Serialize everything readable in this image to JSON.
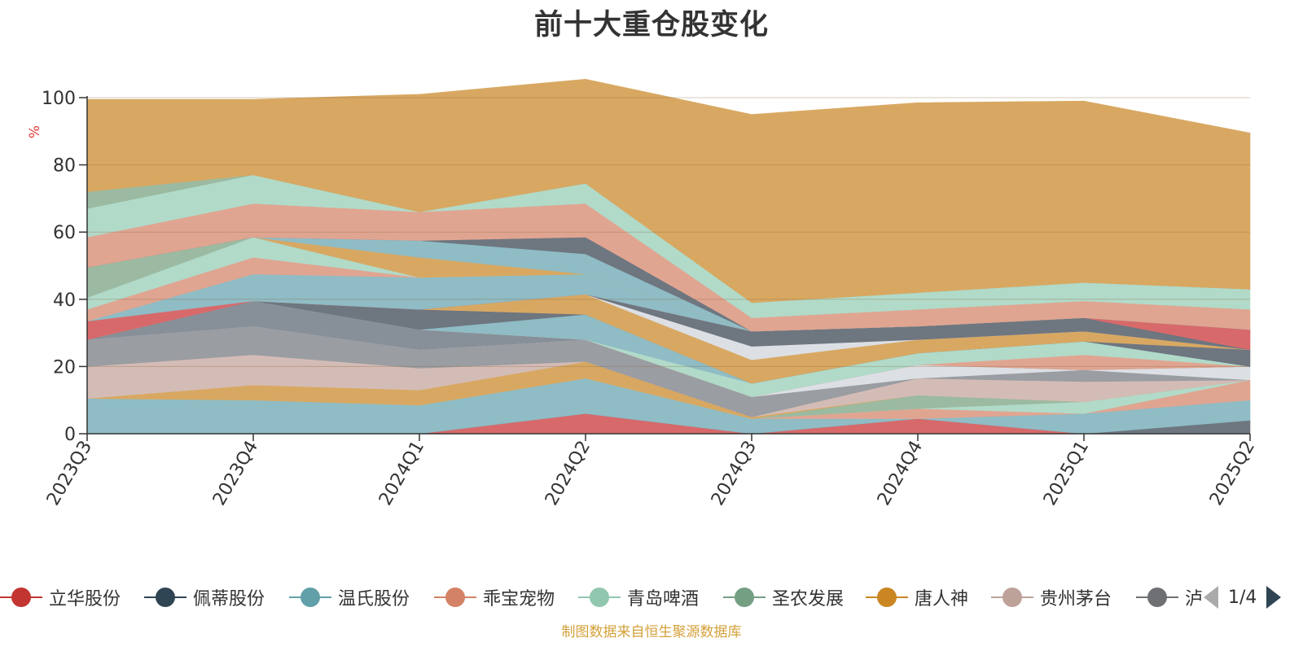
{
  "chart_data": {
    "type": "area",
    "stacked": true,
    "title": "前十大重仓股变化",
    "ylabel": "%",
    "ylim": [
      0,
      100
    ],
    "yticks": [
      0,
      20,
      40,
      60,
      80,
      100
    ],
    "grid": true,
    "categories": [
      "2023Q3",
      "2023Q4",
      "2024Q1",
      "2024Q2",
      "2024Q3",
      "2024Q4",
      "2025Q1",
      "2025Q2"
    ],
    "series": [
      {
        "name": "立华股份",
        "color": "#d8696b",
        "values": [
          0,
          0,
          0,
          6,
          0,
          4.5,
          0,
          0
        ]
      },
      {
        "name": "",
        "color": "#6e7680",
        "values": [
          0,
          0,
          0,
          0,
          0,
          0,
          0,
          4
        ]
      },
      {
        "name": "温氏股份",
        "color": "#8fbcc5",
        "values": [
          10.5,
          10,
          8.5,
          10.5,
          4.5,
          0,
          6,
          6
        ]
      },
      {
        "name": "乖宝宠物",
        "color": "#e0a591",
        "values": [
          0,
          0,
          0,
          0,
          0,
          3,
          0,
          6
        ]
      },
      {
        "name": "",
        "color": "#b1dac9",
        "values": [
          0,
          0,
          0,
          0,
          0,
          0,
          3.5,
          0
        ]
      },
      {
        "name": "圣农发展",
        "color": "#9bbaa1",
        "values": [
          0,
          0,
          0,
          0,
          0,
          4,
          0,
          0
        ]
      },
      {
        "name": "唐人神",
        "color": "#d8a862",
        "values": [
          0,
          4.5,
          4.5,
          5,
          0.5,
          0,
          0,
          0
        ]
      },
      {
        "name": "贵州茅台",
        "color": "#d4bcb6",
        "values": [
          9.5,
          9,
          6.5,
          0,
          0,
          5,
          6,
          0
        ]
      },
      {
        "name": "",
        "color": "#9a9da2",
        "values": [
          8,
          8.5,
          5.5,
          6.5,
          6,
          0,
          3.5,
          0
        ]
      },
      {
        "name": "",
        "color": "#dcdfe4",
        "values": [
          0,
          0,
          0,
          0,
          0,
          4,
          0,
          4
        ]
      },
      {
        "name": "",
        "color": "#878f98",
        "values": [
          0,
          7.5,
          6,
          0,
          0,
          0,
          0,
          0
        ]
      },
      {
        "name": "",
        "color": "#e0a591",
        "values": [
          0,
          0,
          0,
          0,
          0,
          0,
          4.5,
          0
        ]
      },
      {
        "name": "",
        "color": "#b1dac9",
        "values": [
          0,
          0,
          0,
          0,
          4,
          3.5,
          4,
          0
        ]
      },
      {
        "name": "",
        "color": "#8fbcc5",
        "values": [
          0,
          0,
          0,
          7.5,
          0,
          0,
          0,
          0
        ]
      },
      {
        "name": "",
        "color": "#6e7680",
        "values": [
          0,
          0,
          6,
          0,
          0,
          0,
          0,
          5
        ]
      },
      {
        "name": "",
        "color": "#d8a862",
        "values": [
          0,
          0,
          0,
          6,
          7,
          4,
          3,
          0
        ]
      },
      {
        "name": "",
        "color": "#dcdfe4",
        "values": [
          0,
          0,
          0,
          0,
          4,
          0,
          0,
          0
        ]
      },
      {
        "name": "",
        "color": "#6e7680",
        "values": [
          0,
          0,
          0,
          0,
          4.5,
          4,
          4,
          0
        ]
      },
      {
        "name": "",
        "color": "#d8696b",
        "values": [
          5.5,
          0,
          0,
          0,
          0,
          0,
          0,
          6
        ]
      },
      {
        "name": "",
        "color": "#8fbcc5",
        "values": [
          0,
          8,
          9.5,
          6,
          0,
          0,
          0,
          0
        ]
      },
      {
        "name": "",
        "color": "#e0a591",
        "values": [
          3.5,
          5,
          0,
          0,
          0,
          0,
          0,
          0
        ]
      },
      {
        "name": "",
        "color": "#b1dac9",
        "values": [
          3.5,
          6,
          0,
          0,
          0,
          0,
          0,
          0
        ]
      },
      {
        "name": "",
        "color": "#9bbaa1",
        "values": [
          9,
          0,
          0,
          0,
          0,
          0,
          0,
          0
        ]
      },
      {
        "name": "",
        "color": "#d8a862",
        "values": [
          0,
          0,
          6,
          0,
          0,
          0,
          0,
          0
        ]
      },
      {
        "name": "",
        "color": "#8fbcc5",
        "values": [
          0,
          0,
          5,
          6,
          0,
          0,
          0,
          0
        ]
      },
      {
        "name": "",
        "color": "#6e7680",
        "values": [
          0,
          0,
          0,
          5,
          0,
          0,
          0,
          0
        ]
      },
      {
        "name": "",
        "color": "#e0a591",
        "values": [
          9,
          10,
          8.5,
          10,
          4,
          5,
          5,
          6
        ]
      },
      {
        "name": "",
        "color": "#b1dac9",
        "values": [
          8.5,
          8.5,
          0,
          6,
          4.5,
          5,
          5.5,
          6
        ]
      },
      {
        "name": "",
        "color": "#9bbaa1",
        "values": [
          5,
          0,
          0,
          0,
          0,
          0,
          0,
          0
        ]
      },
      {
        "name": "",
        "color": "#d8a862",
        "values": [
          27.5,
          22.5,
          35,
          31,
          56,
          56.5,
          54,
          46.5
        ]
      }
    ]
  },
  "legend": {
    "items": [
      {
        "name": "立华股份",
        "color": "#c23531"
      },
      {
        "name": "佩蒂股份",
        "color": "#2f4554"
      },
      {
        "name": "温氏股份",
        "color": "#61a0a8"
      },
      {
        "name": "乖宝宠物",
        "color": "#d48265"
      },
      {
        "name": "青岛啤酒",
        "color": "#91c7ae"
      },
      {
        "name": "圣农发展",
        "color": "#749f83"
      },
      {
        "name": "唐人神",
        "color": "#ca8622"
      },
      {
        "name": "贵州茅台",
        "color": "#bda29a"
      },
      {
        "name": "泸州老窖",
        "color": "#6e7074"
      }
    ],
    "page_label": "1/4"
  },
  "source_note": "制图数据来自恒生聚源数据库"
}
